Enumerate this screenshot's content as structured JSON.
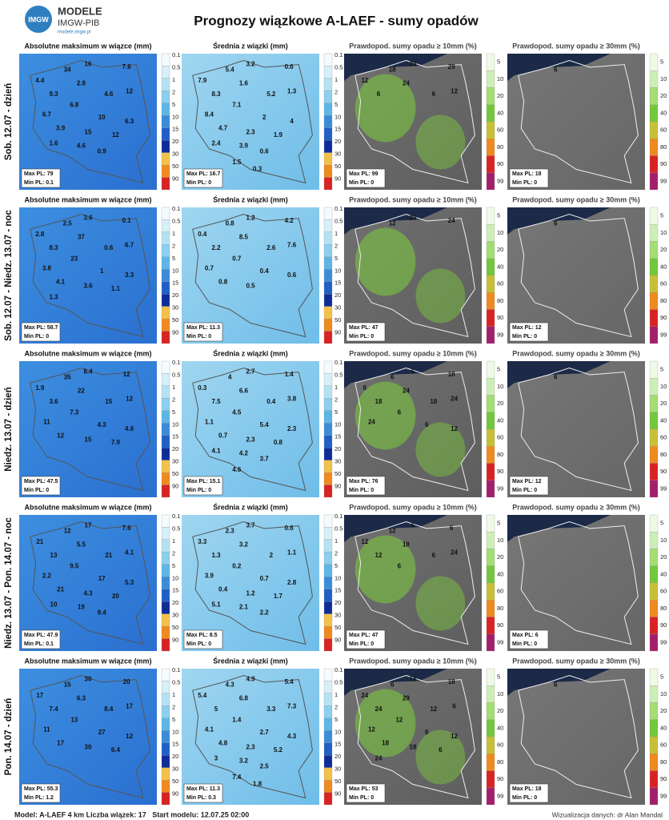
{
  "header": {
    "logo_title": "MODELE",
    "logo_sub": "IMGW-PIB",
    "logo_url": "modele.imgw.pl",
    "logo_badge": "IMGW",
    "title": "Prognozy wiązkowe A-LAEF - sumy opadów"
  },
  "panel_titles": [
    "Absolutne maksimum w wiązce (mm)",
    "Średnia z wiązki (mm)",
    "Prawdopod. sumy opadu ≥ 10mm (%)",
    "Prawdopod. sumy opadu ≥ 30mm (%)"
  ],
  "legends": {
    "amount": [
      "0.1",
      "0.5",
      "1",
      "2",
      "5",
      "10",
      "15",
      "20",
      "30",
      "50",
      "90"
    ],
    "probability": [
      "5",
      "10",
      "20",
      "40",
      "60",
      "80",
      "90",
      "99"
    ]
  },
  "rows": [
    {
      "label": "Sob. 12.07 - dzień",
      "panels": [
        {
          "max": "Max PL: 79",
          "min": "Min PL: 0.1",
          "labels": [
            "34",
            "16",
            "7.6",
            "4.4",
            "2.8",
            "9.3",
            "4.6",
            "12",
            "6.8",
            "6.7",
            "10",
            "6.3",
            "3.9",
            "15",
            "12",
            "1.6",
            "4.6",
            "0.9"
          ]
        },
        {
          "max": "Max PL: 16.7",
          "min": "Min PL: 0",
          "labels": [
            "5.4",
            "3.2",
            "0.6",
            "7.9",
            "1.6",
            "8.3",
            "5.2",
            "1.3",
            "7.1",
            "8.4",
            "2",
            "4",
            "4.7",
            "2.3",
            "1.9",
            "2.4",
            "3.9",
            "0.6",
            "1.5",
            "0.3"
          ]
        },
        {
          "max": "Max PL: 99",
          "min": "Min PL: 0",
          "labels": [
            "18",
            "29",
            "29",
            "12",
            "24",
            "6",
            "6",
            "12"
          ]
        },
        {
          "max": "Max PL: 18",
          "min": "Min PL: 0",
          "labels": [
            "6"
          ]
        }
      ]
    },
    {
      "label": "Sob. 12.07 - Niedz. 13.07 - noc",
      "panels": [
        {
          "max": "Max PL: 58.7",
          "min": "Min PL: 0",
          "labels": [
            "2.5",
            "3.6",
            "0.1",
            "2.8",
            "37",
            "8.3",
            "0.6",
            "6.7",
            "23",
            "3.8",
            "1",
            "3.3",
            "4.1",
            "3.6",
            "1.1",
            "1.3"
          ]
        },
        {
          "max": "Max PL: 11.3",
          "min": "Min PL: 0",
          "labels": [
            "0.8",
            "1.2",
            "4.2",
            "0.4",
            "8.5",
            "2.2",
            "2.6",
            "7.6",
            "0.7",
            "0.7",
            "0.4",
            "0.6",
            "0.8",
            "0.5"
          ]
        },
        {
          "max": "Max PL: 47",
          "min": "Min PL: 0",
          "labels": [
            "12",
            "29",
            "24"
          ]
        },
        {
          "max": "Max PL: 12",
          "min": "Min PL: 0",
          "labels": [
            "6"
          ]
        }
      ]
    },
    {
      "label": "Niedz. 13.07 - dzień",
      "panels": [
        {
          "max": "Max PL: 47.5",
          "min": "Min PL: 0",
          "labels": [
            "35",
            "8.4",
            "12",
            "1.9",
            "22",
            "3.6",
            "15",
            "12",
            "7.3",
            "11",
            "4.3",
            "4.6",
            "12",
            "15",
            "7.9"
          ]
        },
        {
          "max": "Max PL: 15.1",
          "min": "Min PL: 0",
          "labels": [
            "4",
            "2.7",
            "1.4",
            "0.3",
            "6.6",
            "7.5",
            "0.4",
            "3.8",
            "4.5",
            "1.1",
            "5.4",
            "2.3",
            "0.7",
            "2.3",
            "0.8",
            "4.1",
            "4.2",
            "3.7",
            "4.6"
          ]
        },
        {
          "max": "Max PL: 76",
          "min": "Min PL: 0",
          "labels": [
            "6",
            "6",
            "18",
            "6",
            "24",
            "18",
            "18",
            "24",
            "6",
            "24",
            "6",
            "12"
          ]
        },
        {
          "max": "Max PL: 12",
          "min": "Min PL: 0",
          "labels": [
            "6"
          ]
        }
      ]
    },
    {
      "label": "Niedz. 13.07 - Pon. 14.07 - noc",
      "panels": [
        {
          "max": "Max PL: 47.9",
          "min": "Min PL: 0.1",
          "labels": [
            "12",
            "17",
            "7.6",
            "21",
            "5.5",
            "13",
            "21",
            "4.1",
            "9.5",
            "2.2",
            "17",
            "5.3",
            "21",
            "4.3",
            "20",
            "10",
            "19",
            "9.4"
          ]
        },
        {
          "max": "Max PL: 8.5",
          "min": "Min PL: 0",
          "labels": [
            "2.3",
            "3.7",
            "0.6",
            "3.3",
            "3.2",
            "1.3",
            "2",
            "1.1",
            "0.2",
            "3.9",
            "0.7",
            "2.8",
            "0.4",
            "1.2",
            "1.7",
            "5.1",
            "2.1",
            "2.2"
          ]
        },
        {
          "max": "Max PL: 47",
          "min": "Min PL: 0",
          "labels": [
            "12",
            "6",
            "6",
            "12",
            "18",
            "12",
            "6",
            "24",
            "6"
          ]
        },
        {
          "max": "Max PL: 6",
          "min": "Min PL: 0",
          "labels": []
        }
      ]
    },
    {
      "label": "Pon. 14.07 - dzień",
      "panels": [
        {
          "max": "Max PL: 55.3",
          "min": "Min PL: 1.2",
          "labels": [
            "15",
            "30",
            "20",
            "17",
            "6.3",
            "7.4",
            "8.4",
            "17",
            "13",
            "11",
            "27",
            "12",
            "17",
            "30",
            "6.4"
          ]
        },
        {
          "max": "Max PL: 11.3",
          "min": "Min PL: 0.3",
          "labels": [
            "4.3",
            "4.9",
            "5.4",
            "5.4",
            "6.8",
            "5",
            "3.3",
            "7.3",
            "1.4",
            "4.1",
            "2.7",
            "4.3",
            "4.8",
            "2.3",
            "5.2",
            "3",
            "3.2",
            "2.5",
            "7.4",
            "1.8"
          ]
        },
        {
          "max": "Max PL: 53",
          "min": "Min PL: 0",
          "labels": [
            "6",
            "18",
            "18",
            "24",
            "29",
            "24",
            "12",
            "6",
            "12",
            "12",
            "6",
            "12",
            "18",
            "18",
            "6",
            "24"
          ]
        },
        {
          "max": "Max PL: 18",
          "min": "Min PL: 0",
          "labels": [
            "6"
          ]
        }
      ]
    }
  ],
  "footer": {
    "left": "Model: A-LAEF 4 km Liczba wiązek: 17   Start modelu: 12.07.25 02:00",
    "right": "Wizualizacja danych: dr Alan Mandal"
  }
}
